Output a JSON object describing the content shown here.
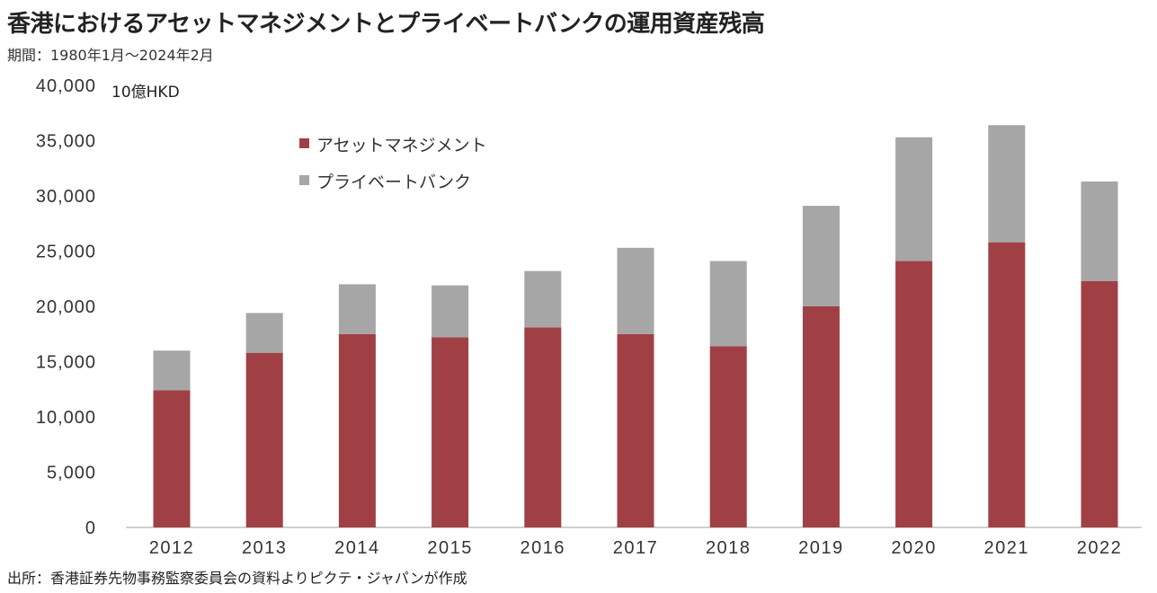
{
  "header": {
    "title": "香港におけるアセットマネジメントとプライベートバンクの運用資産残高",
    "period": "期間：1980年1月～2024年2月"
  },
  "footer": {
    "source": "出所：香港証券先物事務監察委員会の資料よりピクテ・ジャパンが作成"
  },
  "colors": {
    "asset_management": "#a04045",
    "private_bank": "#a6a6a6",
    "axis": "#bfbfbf"
  },
  "chart_data": {
    "type": "bar",
    "stacked": true,
    "unit_label": "10億HKD",
    "categories": [
      "2012",
      "2013",
      "2014",
      "2015",
      "2016",
      "2017",
      "2018",
      "2019",
      "2020",
      "2021",
      "2022"
    ],
    "series": [
      {
        "name": "アセットマネジメント",
        "values": [
          12400,
          15800,
          17500,
          17200,
          18100,
          17500,
          16400,
          20000,
          24100,
          25800,
          22300
        ]
      },
      {
        "name": "プライベートバンク",
        "values": [
          3600,
          3600,
          4500,
          4700,
          5100,
          7800,
          7700,
          9100,
          11200,
          10600,
          9000
        ]
      }
    ],
    "ylim": [
      0,
      40000
    ],
    "yticks": [
      "0",
      "5,000",
      "10,000",
      "15,000",
      "20,000",
      "25,000",
      "30,000",
      "35,000",
      "40,000"
    ],
    "grid": false,
    "legend_position": "top-left"
  }
}
